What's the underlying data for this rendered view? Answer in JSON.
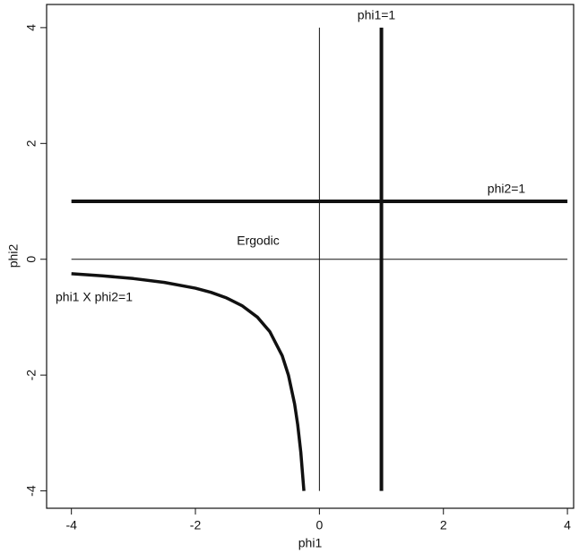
{
  "chart_data": {
    "type": "line",
    "xlabel": "phi1",
    "ylabel": "phi2",
    "xlim": [
      -4.4,
      4.1
    ],
    "ylim": [
      -4.3,
      4.4
    ],
    "xticks": [
      -4,
      -2,
      0,
      2,
      4
    ],
    "yticks": [
      -4,
      -2,
      0,
      2,
      4
    ],
    "series": [
      {
        "color": "#111111",
        "linewidth": 1,
        "x": [
          0,
          0
        ],
        "y": [
          -4,
          4
        ]
      },
      {
        "color": "#111111",
        "linewidth": 1,
        "x": [
          -4,
          4
        ],
        "y": [
          0,
          0
        ]
      },
      {
        "color": "#111111",
        "linewidth": 4,
        "x": [
          1,
          1
        ],
        "y": [
          -4,
          4
        ]
      },
      {
        "color": "#111111",
        "linewidth": 4,
        "x": [
          -4,
          4
        ],
        "y": [
          1,
          1
        ]
      },
      {
        "color": "#111111",
        "linewidth": 3.5,
        "x": [
          -4,
          -3.5,
          -3,
          -2.5,
          -2,
          -1.75,
          -1.5,
          -1.25,
          -1,
          -0.8,
          -0.6,
          -0.5,
          -0.4,
          -0.35,
          -0.3,
          -0.25
        ],
        "y": [
          -0.25,
          -0.2857,
          -0.3333,
          -0.4,
          -0.5,
          -0.5714,
          -0.6667,
          -0.8,
          -1,
          -1.25,
          -1.6667,
          -2,
          -2.5,
          -2.8571,
          -3.3333,
          -4
        ]
      }
    ],
    "annotations": [
      "phi1=1",
      "phi2=1",
      "Ergodic",
      "phi1 X phi2=1"
    ]
  }
}
